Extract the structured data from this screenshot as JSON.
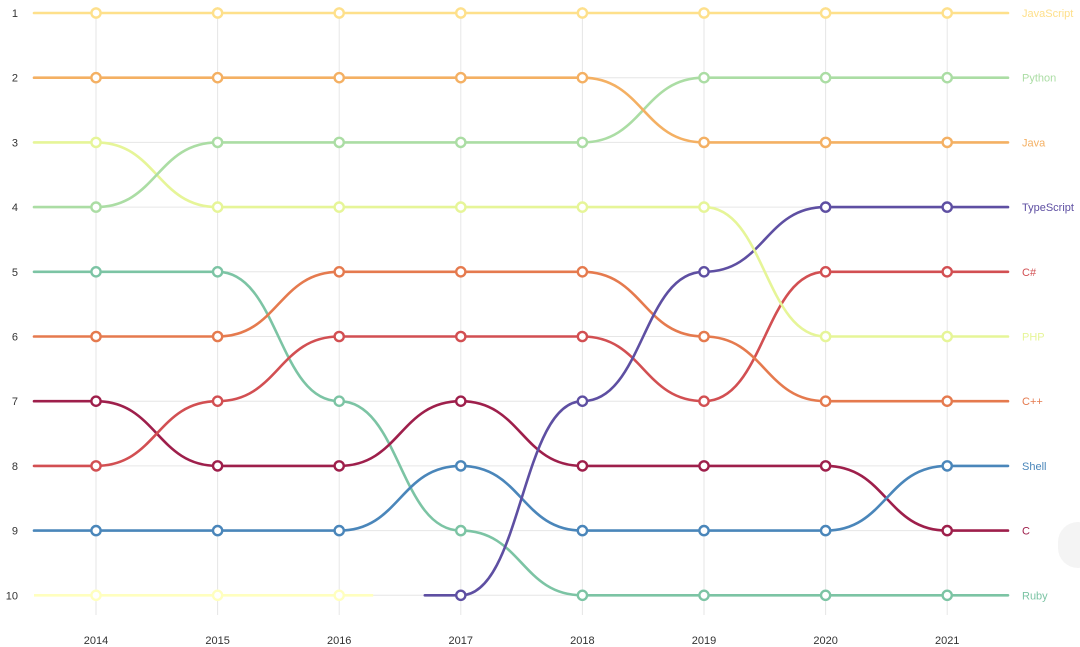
{
  "chart_data": {
    "type": "line",
    "subtype": "bump",
    "title": "",
    "xlabel": "",
    "ylabel": "",
    "x": [
      "2014",
      "2015",
      "2016",
      "2017",
      "2018",
      "2019",
      "2020",
      "2021"
    ],
    "y_ticks": [
      "1",
      "2",
      "3",
      "4",
      "5",
      "6",
      "7",
      "8",
      "9",
      "10"
    ],
    "ylim": [
      1,
      10
    ],
    "y_inverted": true,
    "grid": true,
    "legend": "right (end-of-line labels)",
    "series": [
      {
        "name": "Ruby",
        "color": "#7cc4a4",
        "values": [
          5,
          5,
          7,
          9,
          10,
          10,
          10,
          10
        ]
      },
      {
        "name": "C",
        "color": "#9e1f4b",
        "values": [
          7,
          8,
          8,
          7,
          8,
          8,
          8,
          9
        ]
      },
      {
        "name": "Shell",
        "color": "#4a86ba",
        "values": [
          9,
          9,
          9,
          8,
          9,
          9,
          9,
          8
        ]
      },
      {
        "name": "C#",
        "color": "#d24f52",
        "values": [
          8,
          7,
          6,
          6,
          6,
          7,
          5,
          5
        ]
      },
      {
        "name": "C++",
        "color": "#e57a4e",
        "values": [
          6,
          6,
          5,
          5,
          5,
          6,
          7,
          7
        ]
      },
      {
        "name": "TypeScript",
        "color": "#5e4fa2",
        "values": [
          null,
          null,
          null,
          10,
          7,
          5,
          4,
          4
        ]
      },
      {
        "name": "PHP",
        "color": "#e6f598",
        "values": [
          3,
          4,
          4,
          4,
          4,
          4,
          6,
          6
        ]
      },
      {
        "name": "Python",
        "color": "#abdda4",
        "values": [
          4,
          3,
          3,
          3,
          3,
          2,
          2,
          2
        ]
      },
      {
        "name": "Java",
        "color": "#f4b063",
        "values": [
          2,
          2,
          2,
          2,
          2,
          3,
          3,
          3
        ]
      },
      {
        "name": "JavaScript",
        "color": "#fee08b",
        "values": [
          1,
          1,
          1,
          1,
          1,
          1,
          1,
          1
        ]
      }
    ],
    "partial_series": [
      {
        "color": "#ffffbf",
        "rank": 10,
        "from": "2014",
        "to": "2016"
      }
    ]
  }
}
